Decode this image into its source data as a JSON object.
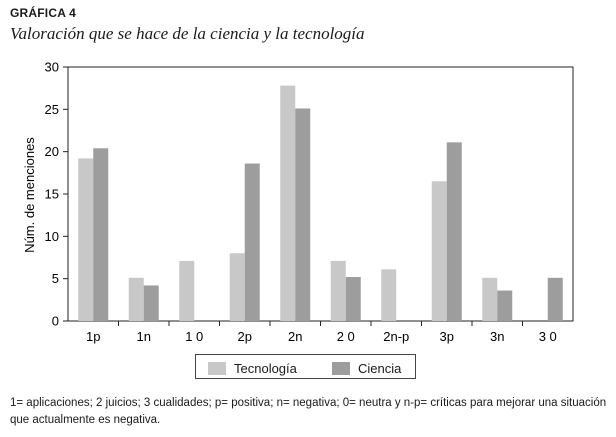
{
  "figure_label": "GRÁFICA 4",
  "chart_data": {
    "type": "bar",
    "title": "Valoración que se hace de la ciencia y la tecnología",
    "xlabel": "",
    "ylabel": "Núm. de menciones",
    "ylim": [
      0,
      30
    ],
    "yticks": [
      0,
      5,
      10,
      15,
      20,
      25,
      30
    ],
    "categories": [
      "1p",
      "1n",
      "1 0",
      "2p",
      "2n",
      "2 0",
      "2n-p",
      "3p",
      "3n",
      "3 0"
    ],
    "series": [
      {
        "name": "Tecnología",
        "color": "#c8c8c8",
        "values": [
          19.2,
          5.1,
          7.1,
          8.0,
          27.8,
          7.1,
          6.1,
          16.5,
          5.1,
          0
        ]
      },
      {
        "name": "Ciencia",
        "color": "#9d9d9d",
        "values": [
          20.4,
          4.2,
          0,
          18.6,
          25.1,
          5.2,
          0,
          21.1,
          3.6,
          5.1
        ]
      }
    ],
    "grid": false,
    "legend_position": "bottom"
  },
  "note": "1= aplicaciones; 2 juicios; 3 cualidades; p= positiva; n= negativa; 0= neutra y n-p= críticas para mejorar una situación que actualmente es negativa."
}
